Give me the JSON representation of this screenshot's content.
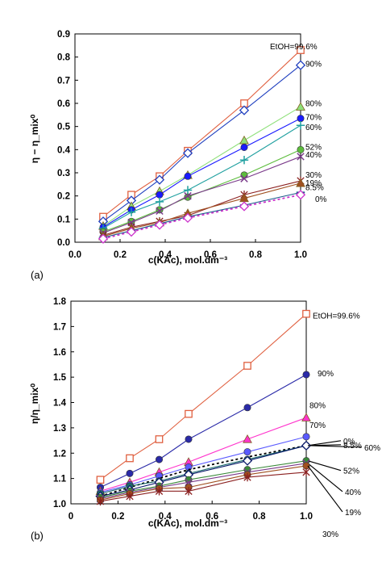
{
  "chart_data": [
    {
      "panel_label": "(a)",
      "type": "line",
      "xlabel": "c(KAc), mol.dm⁻³",
      "ylabel": "η − η_mix⁰",
      "xlim": [
        0,
        1.0
      ],
      "ylim": [
        0,
        0.9
      ],
      "xticks": [
        "0.0",
        "0.2",
        "0.4",
        "0.6",
        "0.8",
        "1.0"
      ],
      "yticks": [
        "0.0",
        "0.1",
        "0.2",
        "0.3",
        "0.4",
        "0.5",
        "0.6",
        "0.7",
        "0.8",
        "0.9"
      ],
      "x": [
        0.125,
        0.25,
        0.375,
        0.5,
        0.75,
        1.0
      ],
      "series": [
        {
          "name": "EtOH=99.6%",
          "color": "#e06040",
          "marker": "square",
          "values": [
            0.11,
            0.205,
            0.285,
            0.395,
            0.6,
            0.83
          ]
        },
        {
          "name": "90%",
          "color": "#1f3fbf",
          "marker": "diamond",
          "values": [
            0.09,
            0.18,
            0.27,
            0.385,
            0.57,
            0.765
          ]
        },
        {
          "name": "80%",
          "color": "#8fe07a",
          "marker": "triangle",
          "values": [
            0.07,
            0.155,
            0.22,
            0.29,
            0.44,
            0.585
          ]
        },
        {
          "name": "70%",
          "color": "#1a1aff",
          "marker": "circle",
          "values": [
            0.065,
            0.14,
            0.205,
            0.285,
            0.41,
            0.535
          ]
        },
        {
          "name": "60%",
          "color": "#20a0a0",
          "marker": "plus",
          "values": [
            0.06,
            0.13,
            0.175,
            0.225,
            0.355,
            0.505
          ]
        },
        {
          "name": "52%",
          "color": "#5cbc3c",
          "marker": "circle",
          "values": [
            0.045,
            0.09,
            0.14,
            0.195,
            0.29,
            0.4
          ]
        },
        {
          "name": "40%",
          "color": "#7a3a8a",
          "marker": "cross",
          "values": [
            0.04,
            0.085,
            0.135,
            0.2,
            0.275,
            0.37
          ]
        },
        {
          "name": "30%",
          "color": "#8b2020",
          "marker": "star",
          "values": [
            0.03,
            0.065,
            0.09,
            0.115,
            0.205,
            0.265
          ]
        },
        {
          "name": "19%",
          "color": "#a05020",
          "marker": "triangle",
          "values": [
            0.025,
            0.06,
            0.085,
            0.125,
            0.19,
            0.255
          ]
        },
        {
          "name": "8.5%",
          "color": "#1a5a8a",
          "marker": "dash",
          "values": [
            0.02,
            0.05,
            0.08,
            0.11,
            0.16,
            0.215
          ]
        },
        {
          "name": "0%",
          "color": "#cc33cc",
          "marker": "diamond",
          "dashed": true,
          "values": [
            0.015,
            0.045,
            0.075,
            0.105,
            0.155,
            0.205
          ]
        }
      ]
    },
    {
      "panel_label": "(b)",
      "type": "line",
      "xlabel": "c(KAc), mol.dm⁻³",
      "ylabel": "η/η_mix⁰",
      "xlim": [
        0,
        1.0
      ],
      "ylim": [
        1.0,
        1.8
      ],
      "xticks": [
        "0",
        "0.2",
        "0.4",
        "0.6",
        "0.8",
        "1.0"
      ],
      "yticks": [
        "1.0",
        "1.1",
        "1.2",
        "1.3",
        "1.4",
        "1.5",
        "1.6",
        "1.7",
        "1.8"
      ],
      "x": [
        0.125,
        0.25,
        0.375,
        0.5,
        0.75,
        1.0
      ],
      "series": [
        {
          "name": "EtOH=99.6%",
          "color": "#e06040",
          "marker": "square",
          "values": [
            1.095,
            1.18,
            1.255,
            1.355,
            1.545,
            1.75
          ]
        },
        {
          "name": "90%",
          "color": "#2a2aa8",
          "marker": "circle",
          "values": [
            1.065,
            1.12,
            1.175,
            1.255,
            1.38,
            1.51
          ]
        },
        {
          "name": "80%",
          "color": "#ff33cc",
          "marker": "triangle",
          "values": [
            1.05,
            1.085,
            1.125,
            1.165,
            1.255,
            1.34
          ]
        },
        {
          "name": "70%",
          "color": "#5a5aff",
          "marker": "circle",
          "values": [
            1.045,
            1.075,
            1.11,
            1.145,
            1.205,
            1.265
          ]
        },
        {
          "name": "0%",
          "color": "#000000",
          "marker": "none",
          "dashed": true,
          "values": [
            1.03,
            1.065,
            1.1,
            1.135,
            1.185,
            1.23
          ]
        },
        {
          "name": "60%",
          "color": "#1a6a6a",
          "marker": "circle",
          "values": [
            1.04,
            1.07,
            1.09,
            1.12,
            1.175,
            1.23
          ]
        },
        {
          "name": "8.5%",
          "color": "#0a1a6a",
          "marker": "diamond",
          "values": [
            1.03,
            1.055,
            1.085,
            1.115,
            1.17,
            1.23
          ]
        },
        {
          "name": "52%",
          "color": "#3a8a3a",
          "marker": "circle",
          "values": [
            1.025,
            1.05,
            1.07,
            1.095,
            1.135,
            1.17
          ]
        },
        {
          "name": "40%",
          "color": "#7a3a8a",
          "marker": "cross",
          "values": [
            1.02,
            1.045,
            1.065,
            1.085,
            1.125,
            1.16
          ]
        },
        {
          "name": "19%",
          "color": "#a05020",
          "marker": "circle",
          "values": [
            1.015,
            1.04,
            1.06,
            1.065,
            1.115,
            1.15
          ]
        },
        {
          "name": "30%",
          "color": "#8b2020",
          "marker": "star",
          "values": [
            1.01,
            1.03,
            1.05,
            1.05,
            1.105,
            1.125
          ]
        }
      ]
    }
  ]
}
